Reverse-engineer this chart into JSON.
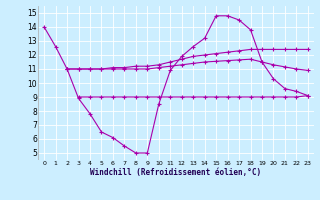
{
  "xlabel": "Windchill (Refroidissement éolien,°C)",
  "bg_color": "#cceeff",
  "line_color": "#aa00aa",
  "ylim": [
    4.5,
    15.5
  ],
  "xlim": [
    -0.5,
    23.5
  ],
  "yticks": [
    5,
    6,
    7,
    8,
    9,
    10,
    11,
    12,
    13,
    14,
    15
  ],
  "xticks": [
    0,
    1,
    2,
    3,
    4,
    5,
    6,
    7,
    8,
    9,
    10,
    11,
    12,
    13,
    14,
    15,
    16,
    17,
    18,
    19,
    20,
    21,
    22,
    23
  ],
  "series1_x": [
    0,
    1,
    2,
    3,
    4,
    5,
    6,
    7,
    8,
    9,
    10,
    11,
    12,
    13,
    14,
    15,
    16,
    17,
    18,
    19,
    20,
    21,
    22,
    23
  ],
  "series1_y": [
    14.0,
    12.6,
    11.0,
    8.9,
    7.8,
    6.5,
    6.1,
    5.5,
    5.0,
    5.0,
    8.5,
    10.9,
    11.9,
    12.6,
    13.2,
    14.8,
    14.8,
    14.5,
    13.8,
    11.5,
    10.3,
    9.6,
    9.4,
    9.1
  ],
  "series2_x": [
    2,
    3,
    4,
    5,
    6,
    7,
    8,
    9,
    10,
    11,
    12,
    13,
    14,
    15,
    16,
    17,
    18,
    19,
    20,
    21,
    22,
    23
  ],
  "series2_y": [
    11.0,
    11.0,
    11.0,
    11.0,
    11.1,
    11.1,
    11.2,
    11.2,
    11.3,
    11.5,
    11.7,
    11.9,
    12.0,
    12.1,
    12.2,
    12.3,
    12.4,
    12.4,
    12.4,
    12.4,
    12.4,
    12.4
  ],
  "series3_x": [
    3,
    4,
    5,
    6,
    7,
    8,
    9,
    10,
    11,
    12,
    13,
    14,
    15,
    16,
    17,
    18,
    19,
    20,
    21,
    22,
    23
  ],
  "series3_y": [
    9.0,
    9.0,
    9.0,
    9.0,
    9.0,
    9.0,
    9.0,
    9.0,
    9.0,
    9.0,
    9.0,
    9.0,
    9.0,
    9.0,
    9.0,
    9.0,
    9.0,
    9.0,
    9.0,
    9.0,
    9.1
  ],
  "series4_x": [
    2,
    3,
    4,
    5,
    6,
    7,
    8,
    9,
    10,
    11,
    12,
    13,
    14,
    15,
    16,
    17,
    18,
    19,
    20,
    21,
    22,
    23
  ],
  "series4_y": [
    11.0,
    11.0,
    11.0,
    11.0,
    11.0,
    11.0,
    11.0,
    11.0,
    11.1,
    11.2,
    11.3,
    11.4,
    11.5,
    11.55,
    11.6,
    11.65,
    11.7,
    11.5,
    11.3,
    11.15,
    11.0,
    10.9
  ]
}
